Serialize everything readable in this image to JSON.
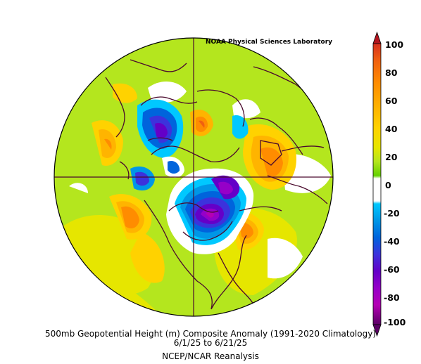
{
  "lab_credit": "NOAA Physical Sciences Laboratory",
  "caption": {
    "line1": "500mb Geopotential Height (m) Composite Anomaly (1991-2020 Climatology)",
    "line2": "6/1/25  to 6/21/25",
    "line3": "NCEP/NCAR Reanalysis"
  },
  "colorbar": {
    "labels": [
      "100",
      "80",
      "60",
      "40",
      "20",
      "0",
      "-20",
      "-40",
      "-60",
      "-80",
      "-100"
    ],
    "colors": [
      "#d7301f",
      "#f06010",
      "#ff8c00",
      "#ffb400",
      "#ffd200",
      "#e6e600",
      "#b4e61e",
      "#64d200",
      "#ffffff",
      "#00c8ff",
      "#0096e6",
      "#0064dc",
      "#3c32dc",
      "#6400c8",
      "#9600c8",
      "#b400b4",
      "#8c0096",
      "#5a0064"
    ]
  },
  "map": {
    "projection": "north-polar-stereographic",
    "background_color": "#b4e61e",
    "coast_color": "#4b0a2d",
    "anomaly_centers": [
      {
        "region": "central-north-america",
        "sign": "negative",
        "strength": "strong"
      },
      {
        "region": "canadian-arctic",
        "sign": "negative",
        "strength": "strong"
      },
      {
        "region": "eastern-europe",
        "sign": "positive",
        "strength": "strong"
      },
      {
        "region": "north-atlantic",
        "sign": "positive",
        "strength": "moderate"
      },
      {
        "region": "north-pacific",
        "sign": "positive",
        "strength": "moderate"
      },
      {
        "region": "northern-siberia",
        "sign": "positive",
        "strength": "moderate"
      }
    ]
  }
}
